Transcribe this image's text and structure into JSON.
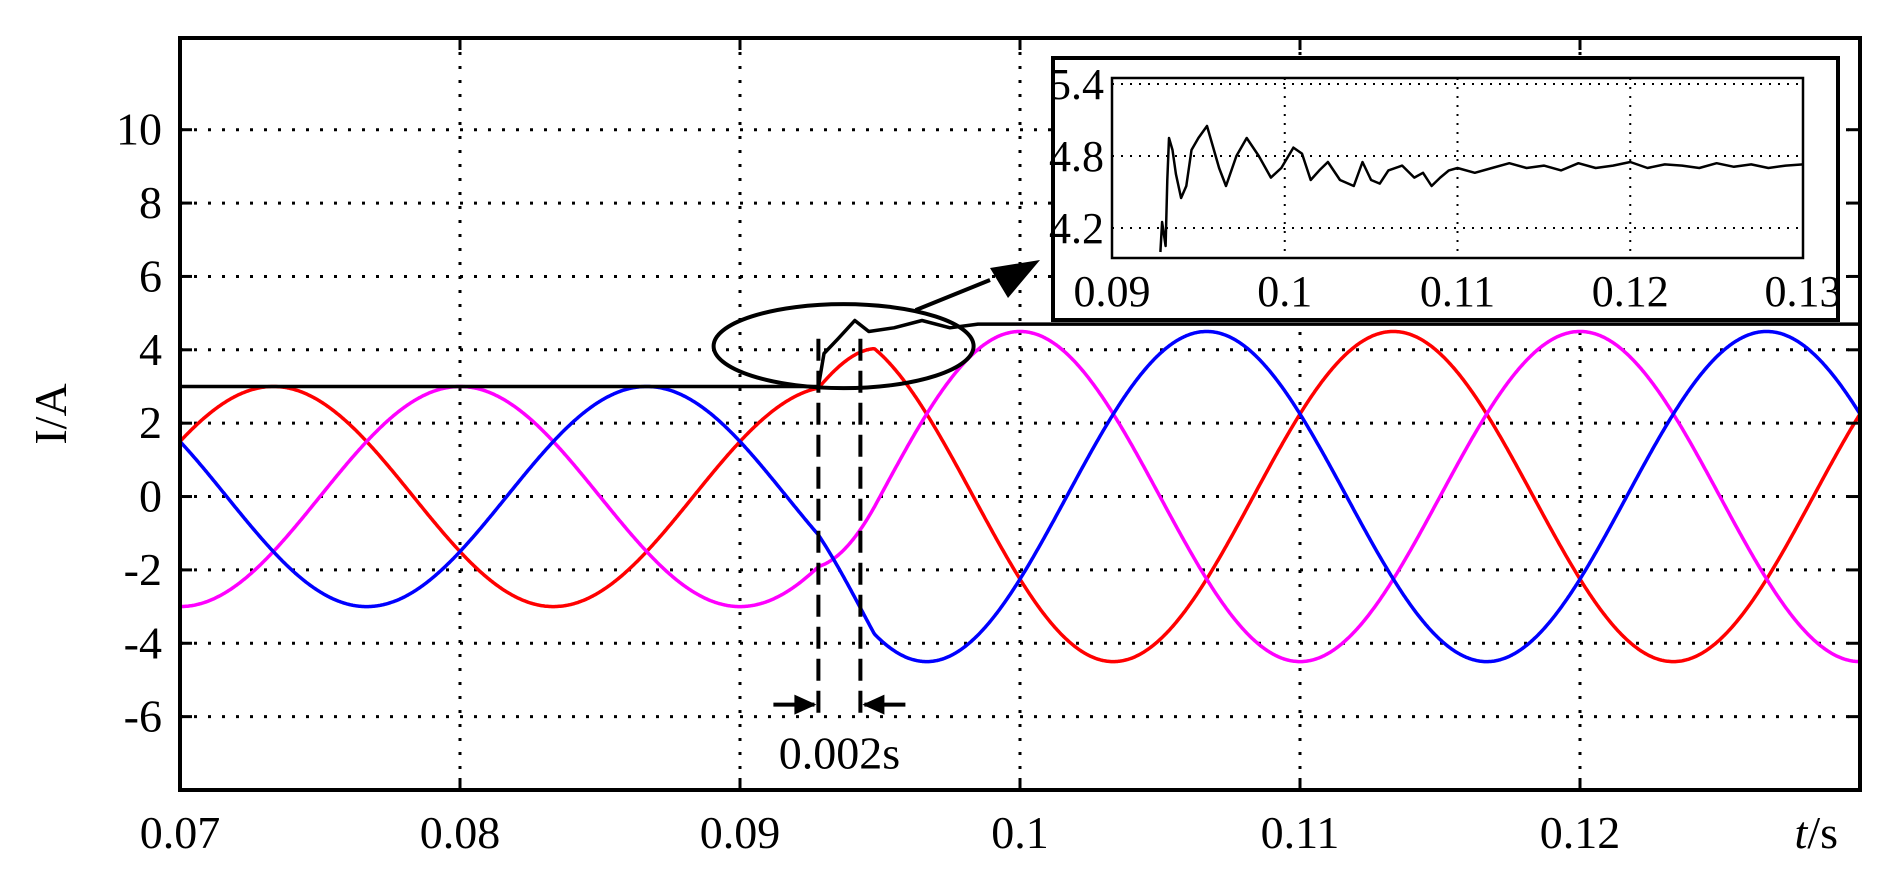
{
  "chart_data": {
    "type": "line",
    "xlabel": "t/s",
    "ylabel": "I/A",
    "xlim": [
      0.07,
      0.13
    ],
    "ylim": [
      -8,
      12.5
    ],
    "xticks": [
      0.07,
      0.08,
      0.09,
      0.1,
      0.11,
      0.12
    ],
    "xtick_labels": [
      "0.07",
      "0.08",
      "0.09",
      "0.1",
      "0.11",
      "0.12"
    ],
    "yticks": [
      -6,
      -4,
      -2,
      0,
      2,
      4,
      6,
      8,
      10
    ],
    "ytick_labels": [
      "-6",
      "-4",
      "-2",
      "0",
      "2",
      "4",
      "6",
      "8",
      "10"
    ],
    "grid": "dotted",
    "series": [
      {
        "color": "#ff0000",
        "kind": "sine",
        "phase_deg": -150,
        "freq_hz": 50,
        "amp_before": 3.0,
        "amp_after": 4.5,
        "step_time": 0.0928,
        "ramp_end": 0.0948
      },
      {
        "color": "#ff00ff",
        "kind": "sine",
        "phase_deg": 90,
        "freq_hz": 50,
        "amp_before": 3.0,
        "amp_after": 4.5,
        "step_time": 0.0928,
        "ramp_end": 0.0948
      },
      {
        "color": "#0000ff",
        "kind": "sine",
        "phase_deg": -30,
        "freq_hz": 50,
        "amp_before": 3.0,
        "amp_after": 4.5,
        "step_time": 0.0928,
        "ramp_end": 0.0948
      },
      {
        "color": "#000000",
        "kind": "envelope",
        "points": [
          [
            0.07,
            3.0
          ],
          [
            0.0928,
            3.0
          ],
          [
            0.093,
            3.9
          ],
          [
            0.0935,
            4.3
          ],
          [
            0.0941,
            4.8
          ],
          [
            0.0946,
            4.5
          ],
          [
            0.0955,
            4.6
          ],
          [
            0.0965,
            4.8
          ],
          [
            0.0975,
            4.6
          ],
          [
            0.0985,
            4.7
          ],
          [
            0.1,
            4.7
          ],
          [
            0.13,
            4.7
          ]
        ]
      }
    ],
    "annotations": {
      "interval_label": "0.002s",
      "interval_start": 0.0928,
      "interval_end": 0.0943
    },
    "inset": {
      "xlim": [
        0.09,
        0.13
      ],
      "ylim": [
        3.95,
        5.45
      ],
      "xticks": [
        0.09,
        0.1,
        0.11,
        0.12,
        0.13
      ],
      "xtick_labels": [
        "0.09",
        "0.1",
        "0.11",
        "0.12",
        "0.13"
      ],
      "yticks": [
        4.2,
        4.8,
        5.4
      ],
      "ytick_labels": [
        "4.2",
        "4.8",
        "5.4"
      ],
      "x": [
        0.0928,
        0.0929,
        0.0931,
        0.0932,
        0.0933,
        0.0935,
        0.0937,
        0.094,
        0.0943,
        0.0946,
        0.095,
        0.0955,
        0.0958,
        0.0962,
        0.0966,
        0.0972,
        0.0978,
        0.0985,
        0.0992,
        0.0998,
        0.1005,
        0.101,
        0.1015,
        0.102,
        0.1025,
        0.1032,
        0.104,
        0.1045,
        0.105,
        0.1055,
        0.106,
        0.1068,
        0.1075,
        0.108,
        0.1085,
        0.109,
        0.1095,
        0.11,
        0.111,
        0.112,
        0.113,
        0.114,
        0.115,
        0.116,
        0.117,
        0.118,
        0.119,
        0.12,
        0.121,
        0.122,
        0.123,
        0.124,
        0.125,
        0.126,
        0.127,
        0.128,
        0.129,
        0.13
      ],
      "y": [
        4.0,
        4.25,
        4.05,
        4.6,
        4.95,
        4.85,
        4.65,
        4.45,
        4.55,
        4.85,
        4.95,
        5.05,
        4.9,
        4.7,
        4.55,
        4.8,
        4.95,
        4.8,
        4.62,
        4.7,
        4.87,
        4.82,
        4.6,
        4.68,
        4.75,
        4.6,
        4.55,
        4.75,
        4.6,
        4.57,
        4.68,
        4.72,
        4.62,
        4.66,
        4.55,
        4.62,
        4.68,
        4.7,
        4.66,
        4.7,
        4.74,
        4.7,
        4.72,
        4.68,
        4.74,
        4.7,
        4.72,
        4.75,
        4.7,
        4.73,
        4.72,
        4.7,
        4.74,
        4.71,
        4.73,
        4.7,
        4.72,
        4.73
      ]
    }
  }
}
